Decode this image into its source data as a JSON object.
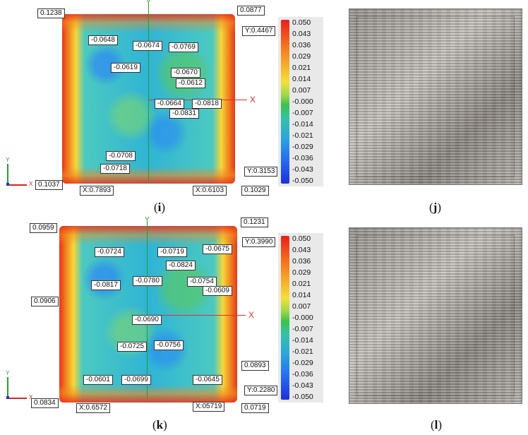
{
  "scale": [
    "0.050",
    "0.043",
    "0.036",
    "0.029",
    "0.021",
    "0.014",
    "0.007",
    "-0.000",
    "-0.007",
    "-0.014",
    "-0.021",
    "-0.029",
    "-0.036",
    "-0.043",
    "-0.050"
  ],
  "axis": {
    "x": "X",
    "y": "Y"
  },
  "panel_i": {
    "caption": "i",
    "labels": [
      "0.1238",
      "0.0877",
      "Y:0.4467",
      "-0.0648",
      "-0.0674",
      "-0.0769",
      "-0.0619",
      "-0.0670",
      "-0.0612",
      "-0.0664",
      "-0.0818",
      "-0.0831",
      "-0.0708",
      "-0.0718",
      "0.1037",
      "X:0.7893",
      "Y:0.3153",
      "X:0.6103",
      "0.1029"
    ]
  },
  "panel_j": {
    "caption": "j"
  },
  "panel_k": {
    "caption": "k",
    "labels": [
      "0.0959",
      "0.1231",
      "Y:0.3990",
      "-0.0724",
      "-0.0719",
      "-0.0675",
      "-0.0824",
      "-0.0817",
      "-0.0780",
      "-0.0754",
      "-0.0609",
      "0.0906",
      "-0.0690",
      "-0.0725",
      "-0.0756",
      "0.0893",
      "-0.0601",
      "-0.0699",
      "-0.0645",
      "Y:0.2280",
      "0.0834",
      "X:0.6572",
      "X:05719",
      "0.0719"
    ]
  },
  "panel_l": {
    "caption": "l"
  }
}
